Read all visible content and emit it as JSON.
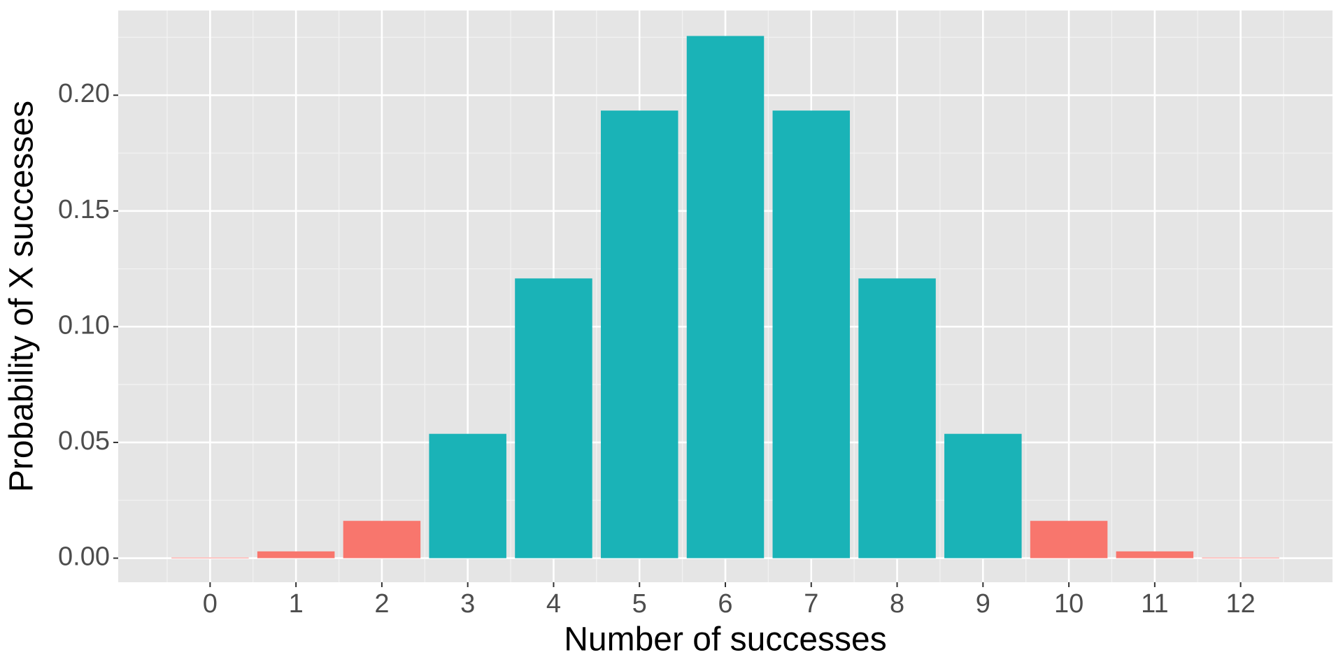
{
  "chart_data": {
    "type": "bar",
    "x_label": "Number of successes",
    "y_label": "Probability of X successes",
    "categories": [
      "0",
      "1",
      "2",
      "3",
      "4",
      "5",
      "6",
      "7",
      "8",
      "9",
      "10",
      "11",
      "12"
    ],
    "values": [
      0.000244,
      0.00293,
      0.01611,
      0.05371,
      0.12085,
      0.19336,
      0.22559,
      0.19336,
      0.12085,
      0.05371,
      0.01611,
      0.00293,
      0.000244
    ],
    "colors": [
      "#f8766d",
      "#f8766d",
      "#f8766d",
      "#1ab3b7",
      "#1ab3b7",
      "#1ab3b7",
      "#1ab3b7",
      "#1ab3b7",
      "#1ab3b7",
      "#1ab3b7",
      "#f8766d",
      "#f8766d",
      "#f8766d"
    ],
    "ylim": [
      -0.0104,
      0.2366
    ],
    "yticks": [
      {
        "value": 0,
        "label": "0.00"
      },
      {
        "value": 0.05,
        "label": "0.05"
      },
      {
        "value": 0.1,
        "label": "0.10"
      },
      {
        "value": 0.15,
        "label": "0.15"
      },
      {
        "value": 0.2,
        "label": "0.20"
      }
    ],
    "yminor": [
      0.025,
      0.075,
      0.125,
      0.175,
      0.225
    ],
    "grid": true
  }
}
